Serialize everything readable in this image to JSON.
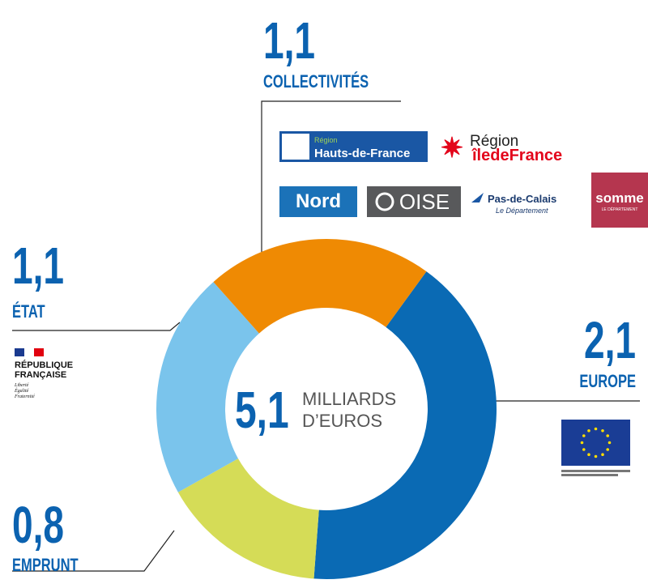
{
  "chart_data": {
    "type": "donut",
    "categories": [
      "EUROPE",
      "EMPRUNT",
      "ÉTAT",
      "COLLECTIVITÉS"
    ],
    "values": [
      2.1,
      0.8,
      1.1,
      1.1
    ],
    "value_labels": [
      "2,1",
      "0,8",
      "1,1",
      "1,1"
    ],
    "colors": [
      "#0a6ab4",
      "#d5dc57",
      "#7ac4ec",
      "#ef8a03"
    ],
    "center_value": "5,1",
    "center_label": [
      "MILLIARDS",
      "D’EUROS"
    ]
  },
  "logos": {
    "collectivites": [
      "Région",
      "Hauts-de-France",
      "Région",
      "îledeFrance",
      "Nord",
      "OISE",
      "Pas-de-Calais",
      "Le Département",
      "somme",
      "LE DÉPARTEMENT"
    ],
    "etat": [
      "RÉPUBLIQUE",
      "FRANÇAISE",
      "Liberté",
      "Égalité",
      "Fraternité"
    ]
  }
}
